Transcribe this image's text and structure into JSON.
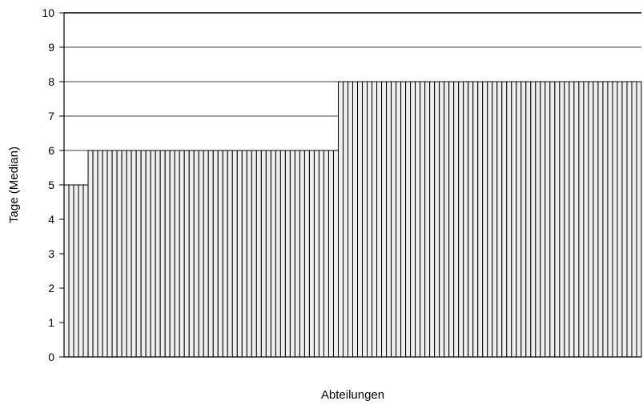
{
  "chart_data": {
    "type": "bar",
    "title": "",
    "xlabel": "Abteilungen",
    "ylabel": "Tage (Median)",
    "ylim": [
      0,
      10
    ],
    "yticks": [
      "0",
      "1",
      "2",
      "3",
      "4",
      "5",
      "6",
      "7",
      "8",
      "9",
      "10"
    ],
    "grid": true,
    "bar_fill": "#eeeeee",
    "bar_stroke": "#000000",
    "gridline_color": "#000000",
    "values": [
      5,
      5,
      5,
      5,
      5,
      6,
      6,
      6,
      6,
      6,
      6,
      6,
      6,
      6,
      6,
      6,
      6,
      6,
      6,
      6,
      6,
      6,
      6,
      6,
      6,
      6,
      6,
      6,
      6,
      6,
      6,
      6,
      6,
      6,
      6,
      6,
      6,
      6,
      6,
      6,
      6,
      6,
      6,
      6,
      6,
      6,
      6,
      6,
      6,
      6,
      6,
      6,
      6,
      6,
      6,
      6,
      6,
      8,
      8,
      8,
      8,
      8,
      8,
      8,
      8,
      8,
      8,
      8,
      8,
      8,
      8,
      8,
      8,
      8,
      8,
      8,
      8,
      8,
      8,
      8,
      8,
      8,
      8,
      8,
      8,
      8,
      8,
      8,
      8,
      8,
      8,
      8,
      8,
      8,
      8,
      8,
      8,
      8,
      8,
      8,
      8,
      8,
      8,
      8,
      8,
      8,
      8,
      8,
      8,
      8,
      8,
      8,
      8,
      8,
      8,
      8,
      8,
      8,
      8,
      8
    ]
  }
}
